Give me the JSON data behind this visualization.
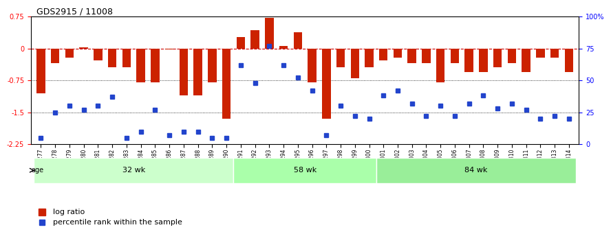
{
  "title": "GDS2915 / 11008",
  "samples": [
    "GSM97277",
    "GSM97278",
    "GSM97279",
    "GSM97280",
    "GSM97281",
    "GSM97282",
    "GSM97283",
    "GSM97284",
    "GSM97285",
    "GSM97286",
    "GSM97287",
    "GSM97288",
    "GSM97289",
    "GSM97290",
    "GSM97291",
    "GSM97292",
    "GSM97293",
    "GSM97294",
    "GSM97295",
    "GSM97296",
    "GSM97297",
    "GSM97298",
    "GSM97299",
    "GSM97300",
    "GSM97301",
    "GSM97302",
    "GSM97303",
    "GSM97304",
    "GSM97305",
    "GSM97306",
    "GSM97307",
    "GSM97308",
    "GSM97309",
    "GSM97310",
    "GSM97311",
    "GSM97312",
    "GSM97313",
    "GSM97314"
  ],
  "log_ratio": [
    -1.05,
    -0.35,
    -0.22,
    0.02,
    -0.28,
    -0.45,
    -0.45,
    -0.8,
    -0.8,
    -0.03,
    -1.1,
    -1.1,
    -0.8,
    -1.65,
    0.27,
    0.42,
    0.72,
    0.05,
    0.38,
    -0.8,
    -1.65,
    -0.45,
    -0.7,
    -0.45,
    -0.28,
    -0.22,
    -0.35,
    -0.35,
    -0.8,
    -0.35,
    -0.55,
    -0.55,
    -0.45,
    -0.35,
    -0.55,
    -0.22,
    -0.22,
    -0.55
  ],
  "percentile": [
    5,
    25,
    30,
    27,
    30,
    37,
    5,
    10,
    27,
    7,
    10,
    10,
    5,
    5,
    62,
    48,
    77,
    62,
    52,
    42,
    7,
    30,
    22,
    20,
    38,
    42,
    32,
    22,
    30,
    22,
    32,
    38,
    28,
    32,
    27,
    20,
    22,
    20
  ],
  "groups": [
    {
      "label": "32 wk",
      "start": 0,
      "end": 14,
      "color": "#ccffcc"
    },
    {
      "label": "58 wk",
      "start": 14,
      "end": 24,
      "color": "#aaffaa"
    },
    {
      "label": "84 wk",
      "start": 24,
      "end": 38,
      "color": "#99ee99"
    }
  ],
  "ylim_left": [
    -2.25,
    0.75
  ],
  "ylim_right": [
    0,
    100
  ],
  "yticks_left": [
    0.75,
    0,
    -0.75,
    -1.5,
    -2.25
  ],
  "yticks_right": [
    100,
    75,
    50,
    25,
    0
  ],
  "bar_color": "#cc2200",
  "dot_color": "#2244cc",
  "background_color": "#ffffff",
  "hline_color": "#888888",
  "hline_dashed_color": "#cc0000"
}
